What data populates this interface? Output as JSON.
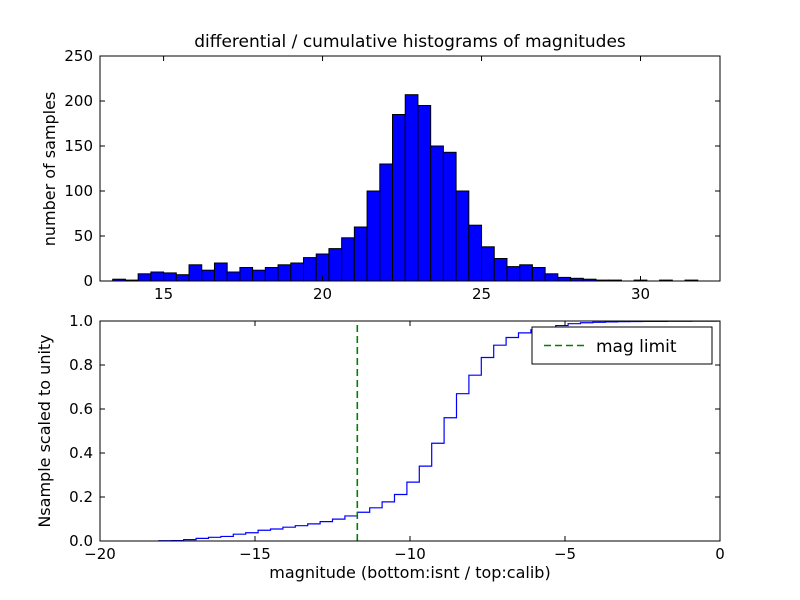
{
  "figure": {
    "background": "#ffffff",
    "text_color": "#000000"
  },
  "chart_data": [
    {
      "type": "bar",
      "subplot": "top",
      "title": "differential / cumulative histograms of magnitudes",
      "ylabel": "number of samples",
      "xlim": [
        13,
        32.5
      ],
      "ylim": [
        0,
        250
      ],
      "xticks": [
        15,
        20,
        25,
        30
      ],
      "xtick_labels": [
        "15",
        "20",
        "25",
        "30"
      ],
      "yticks": [
        0,
        50,
        100,
        150,
        200,
        250
      ],
      "ytick_labels": [
        "0",
        "50",
        "100",
        "150",
        "200",
        "250"
      ],
      "bin_start": 13.4,
      "bin_width": 0.4,
      "counts": [
        2,
        1,
        8,
        10,
        9,
        7,
        18,
        12,
        20,
        10,
        15,
        12,
        15,
        18,
        20,
        26,
        30,
        36,
        48,
        60,
        100,
        130,
        185,
        207,
        195,
        150,
        143,
        100,
        62,
        38,
        25,
        16,
        18,
        15,
        8,
        4,
        3,
        2,
        1,
        1,
        0,
        1,
        0,
        1,
        0,
        1,
        0
      ],
      "bar_color": "#0000ff",
      "bar_edge_color": "#000000",
      "grid": false
    },
    {
      "type": "line",
      "subplot": "bottom",
      "style": "cumulative-step",
      "ylabel": "Nsample scaled to unity",
      "xlabel": "magnitude (bottom:isnt / top:calib)",
      "xlim": [
        -20,
        0
      ],
      "ylim": [
        0.0,
        1.0
      ],
      "xticks": [
        -20,
        -15,
        -10,
        -5,
        0
      ],
      "xtick_labels": [
        "−20",
        "−15",
        "−10",
        "−5",
        "0"
      ],
      "yticks": [
        0.0,
        0.2,
        0.4,
        0.6,
        0.8,
        1.0
      ],
      "ytick_labels": [
        "0.0",
        "0.2",
        "0.4",
        "0.6",
        "0.8",
        "1.0"
      ],
      "line_color": "#0000ff",
      "source": "cumulative of top histogram counts scaled to unity, magnitudes shifted by offset_from_top",
      "offset_from_top": -31.5,
      "mag_limit": -11.7,
      "mag_limit_color": "#008000",
      "legend": {
        "label": "mag limit",
        "position": "upper right"
      },
      "grid": false
    }
  ]
}
